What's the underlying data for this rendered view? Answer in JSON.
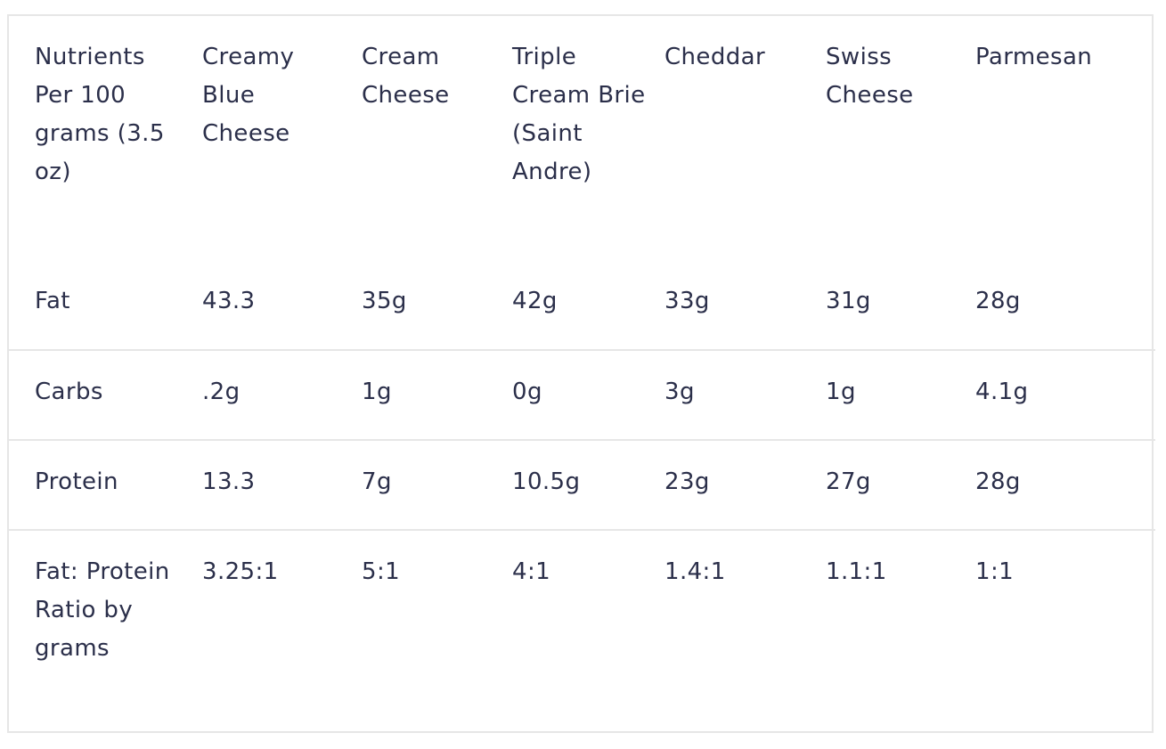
{
  "table": {
    "headers": [
      "Nutrients Per 100 grams (3.5 oz)",
      "Creamy Blue Cheese",
      "Cream Cheese",
      "Triple Cream Brie (Saint Andre)",
      "Cheddar",
      "Swiss Cheese",
      "Parmesan"
    ],
    "rows": [
      [
        "Fat",
        "43.3",
        "35g",
        "42g",
        "33g",
        "31g",
        "28g"
      ],
      [
        "Carbs",
        ".2g",
        "1g",
        "0g",
        "3g",
        "1g",
        "4.1g"
      ],
      [
        "Protein",
        "13.3",
        "7g",
        "10.5g",
        "23g",
        "27g",
        "28g"
      ],
      [
        "Fat: Protein Ratio by grams",
        "3.25:1",
        "5:1",
        "4:1",
        "1.4:1",
        "1.1:1",
        "1:1"
      ]
    ]
  },
  "colors": {
    "text": "#2b2f4a",
    "border": "#e6e6e6",
    "background": "#ffffff"
  }
}
